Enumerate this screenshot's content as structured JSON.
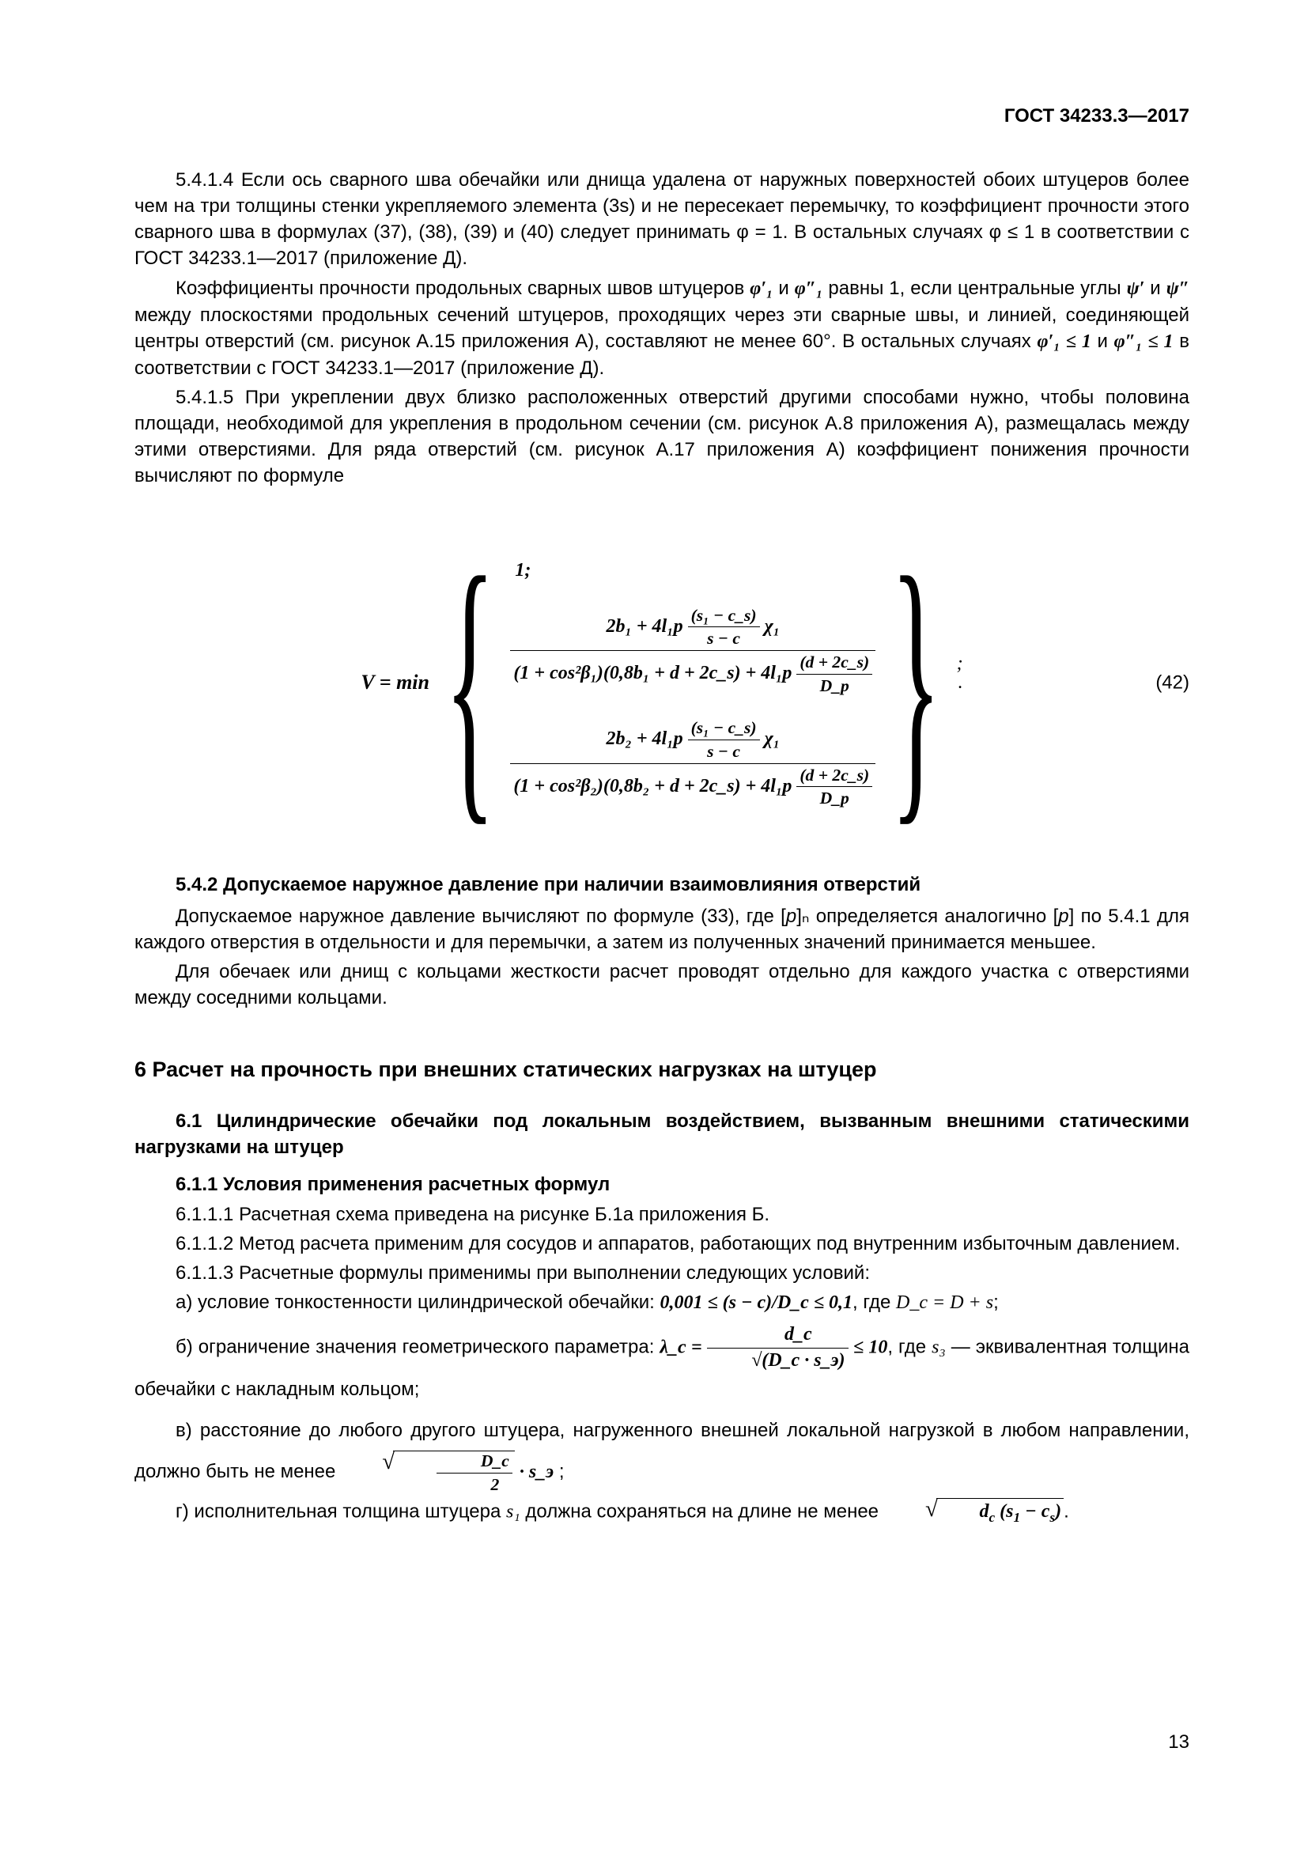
{
  "header": "ГОСТ 34233.3—2017",
  "page_number": "13",
  "p1": "5.4.1.4 Если ось сварного шва обечайки или днища удалена от наружных поверхностей обоих штуцеров более чем на три толщины стенки укрепляемого элемента (3s) и не пересекает перемычку, то коэффициент прочности этого сварного шва в формулах (37), (38), (39) и (40) следует принимать φ = 1. В остальных случаях φ ≤ 1 в соответствии с ГОСТ 34233.1—2017 (приложение Д).",
  "p2a": "Коэффициенты прочности продольных сварных швов штуцеров ",
  "p2_phi1p": "φ′₁",
  "p2_and": " и ",
  "p2_phi1pp": "φ″₁",
  "p2b": " равны 1, если центральные углы ",
  "p2_psi1": "ψ′",
  "p2_psi2": "ψ″",
  "p2c": " между плоскостями продольных сечений штуцеров, проходящих через эти сварные швы, и линией, соединяющей центры отверстий (см. рисунок А.15 приложения А), составляют не менее 60°. В остальных случаях ",
  "p2_cond1": "φ′₁ ≤ 1",
  "p2_cond_and": " и ",
  "p2_cond2": "φ″₁ ≤ 1",
  "p2d": " в соответствии с ГОСТ 34233.1—2017 (приложение Д).",
  "p3": "5.4.1.5 При укреплении двух близко расположенных отверстий другими способами нужно, чтобы половина площади, необходимой для укрепления в продольном сечении (см. рисунок А.8 приложения А), размещалась между этими отверстиями. Для ряда отверстий (см. рисунок А.17 приложения А) коэффициент понижения прочности вычисляют по формуле",
  "formula": {
    "lead": "V = min",
    "row1": "1;",
    "row2_num_a": "2b₁ + 4l₁p",
    "row2_num_frac_num": "s₁ − c_s",
    "row2_num_frac_den": "s − c",
    "row2_num_b": "χ₁",
    "row2_den_a": "(1 + cos²β₁)(0,8b₁ + d + 2c_s) + 4l₁p",
    "row2_den_frac_num": "(d + 2c_s)",
    "row2_den_frac_den": "D_p",
    "row2_tail": ";",
    "row3_num_a": "2b₂ + 4l₁p",
    "row3_num_frac_num": "s₁ − c_s",
    "row3_num_frac_den": "s − c",
    "row3_num_b": "χ₁",
    "row3_den_a": "(1 + cos²β₂)(0,8b₂ + d + 2c_s) + 4l₁p",
    "row3_den_frac_num": "(d + 2c_s)",
    "row3_den_frac_den": "D_p",
    "dot": ".",
    "number": "(42)"
  },
  "h542": "5.4.2 Допускаемое наружное давление при наличии взаимовлияния отверстий",
  "p4a": "Допускаемое наружное давление вычисляют по формуле (33), где [",
  "p4_sym1": "p",
  "p4b": "]ₙ определяется аналогично [",
  "p4_sym2": "p",
  "p4c": "] по 5.4.1 для каждого отверстия в отдельности и для перемычки, а затем из полученных значений принимается меньшее.",
  "p5": "Для обечаек или днищ с кольцами жесткости расчет проводят отдельно для каждого участка с отверстиями между соседними кольцами.",
  "h6": "6 Расчет на прочность при внешних статических нагрузках на штуцер",
  "h61": "6.1 Цилиндрические обечайки под локальным воздействием, вызванным внешними статическими нагрузками на штуцер",
  "h611": "6.1.1 Условия применения расчетных формул",
  "p6111": "6.1.1.1 Расчетная схема приведена на рисунке Б.1а приложения Б.",
  "p6112": "6.1.1.2 Метод расчета применим для сосудов и аппаратов, работающих под внутренним избыточным давлением.",
  "p6113": "6.1.1.3 Расчетные формулы применимы при выполнении следующих условий:",
  "pa_a": "а) условие тонкостенности цилиндрической обечайки: ",
  "pa_cond": "0,001 ≤ (s − c)/D_c ≤ 0,1",
  "pa_b": ", где ",
  "pa_Dc": "D_c = D + s",
  "pa_c": ";",
  "pb_a": "б) ограничение значения геометрического параметра: ",
  "pb_lambda": "λ_c = ",
  "pb_frac_num": "d_c",
  "pb_frac_den": "√(D_c · s_э)",
  "pb_cond": " ≤ 10",
  "pb_b": ", где ",
  "pb_s3": "s₃",
  "pb_c": " — эквивалентная толщина обечайки с накладным кольцом;",
  "pc_a": "в) расстояние до любого другого штуцера, нагруженного внешней локальной нагрузкой в любом направлении, должно быть не менее ",
  "pc_sqrt_num": "D_c",
  "pc_sqrt_den": "2",
  "pc_tail": " · s_э",
  "pc_semi": " ;",
  "pd_a": "г) исполнительная толщина штуцера ",
  "pd_s1": "s₁",
  "pd_b": " должна сохраняться на длине не менее ",
  "pd_sqrt": "√(d_c (s₁ − c_s))",
  "pd_c": "."
}
